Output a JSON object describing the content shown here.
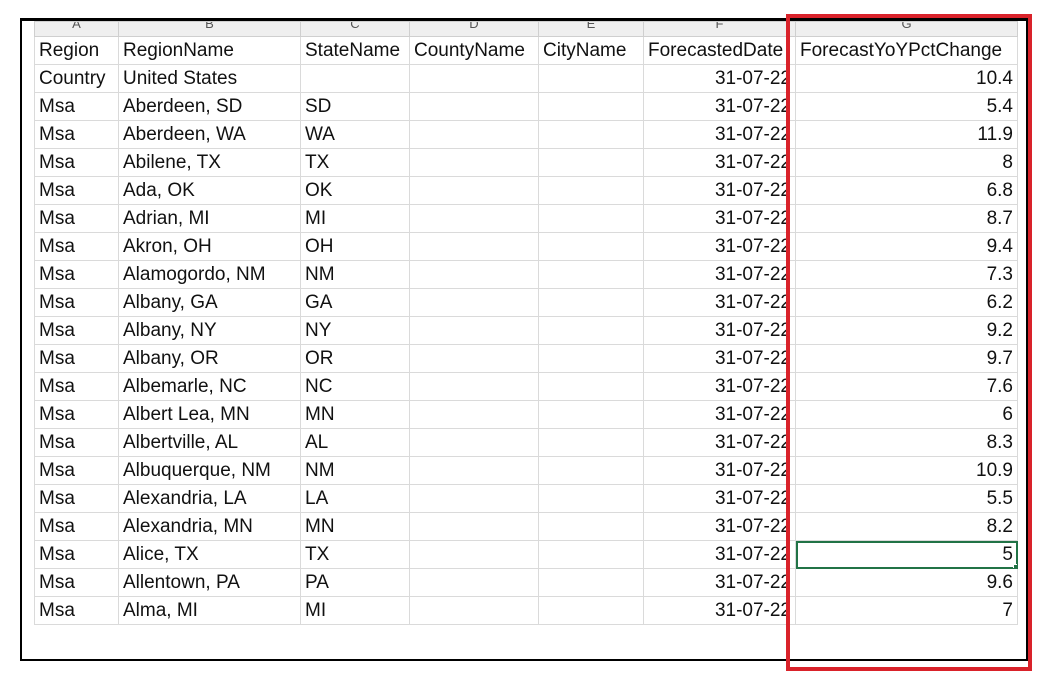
{
  "columns": [
    {
      "letter": "A",
      "header": "Region"
    },
    {
      "letter": "B",
      "header": "RegionName"
    },
    {
      "letter": "C",
      "header": "StateName"
    },
    {
      "letter": "D",
      "header": "CountyName"
    },
    {
      "letter": "E",
      "header": "CityName"
    },
    {
      "letter": "F",
      "header": "ForecastedDate"
    },
    {
      "letter": "G",
      "header": "ForecastYoYPctChange"
    }
  ],
  "rows": [
    [
      "Country",
      "United States",
      "",
      "",
      "",
      "31-07-22",
      "10.4"
    ],
    [
      "Msa",
      "Aberdeen, SD",
      "SD",
      "",
      "",
      "31-07-22",
      "5.4"
    ],
    [
      "Msa",
      "Aberdeen, WA",
      "WA",
      "",
      "",
      "31-07-22",
      "11.9"
    ],
    [
      "Msa",
      "Abilene, TX",
      "TX",
      "",
      "",
      "31-07-22",
      "8"
    ],
    [
      "Msa",
      "Ada, OK",
      "OK",
      "",
      "",
      "31-07-22",
      "6.8"
    ],
    [
      "Msa",
      "Adrian, MI",
      "MI",
      "",
      "",
      "31-07-22",
      "8.7"
    ],
    [
      "Msa",
      "Akron, OH",
      "OH",
      "",
      "",
      "31-07-22",
      "9.4"
    ],
    [
      "Msa",
      "Alamogordo, NM",
      "NM",
      "",
      "",
      "31-07-22",
      "7.3"
    ],
    [
      "Msa",
      "Albany, GA",
      "GA",
      "",
      "",
      "31-07-22",
      "6.2"
    ],
    [
      "Msa",
      "Albany, NY",
      "NY",
      "",
      "",
      "31-07-22",
      "9.2"
    ],
    [
      "Msa",
      "Albany, OR",
      "OR",
      "",
      "",
      "31-07-22",
      "9.7"
    ],
    [
      "Msa",
      "Albemarle, NC",
      "NC",
      "",
      "",
      "31-07-22",
      "7.6"
    ],
    [
      "Msa",
      "Albert Lea, MN",
      "MN",
      "",
      "",
      "31-07-22",
      "6"
    ],
    [
      "Msa",
      "Albertville, AL",
      "AL",
      "",
      "",
      "31-07-22",
      "8.3"
    ],
    [
      "Msa",
      "Albuquerque, NM",
      "NM",
      "",
      "",
      "31-07-22",
      "10.9"
    ],
    [
      "Msa",
      "Alexandria, LA",
      "LA",
      "",
      "",
      "31-07-22",
      "5.5"
    ],
    [
      "Msa",
      "Alexandria, MN",
      "MN",
      "",
      "",
      "31-07-22",
      "8.2"
    ],
    [
      "Msa",
      "Alice, TX",
      "TX",
      "",
      "",
      "31-07-22",
      "5"
    ],
    [
      "Msa",
      "Allentown, PA",
      "PA",
      "",
      "",
      "31-07-22",
      "9.6"
    ],
    [
      "Msa",
      "Alma, MI",
      "MI",
      "",
      "",
      "31-07-22",
      "7"
    ]
  ],
  "selected_cell": {
    "row": 17,
    "col": 6
  },
  "colors": {
    "highlight": "#d9222a",
    "selection": "#217346",
    "gridline": "#dadada"
  }
}
